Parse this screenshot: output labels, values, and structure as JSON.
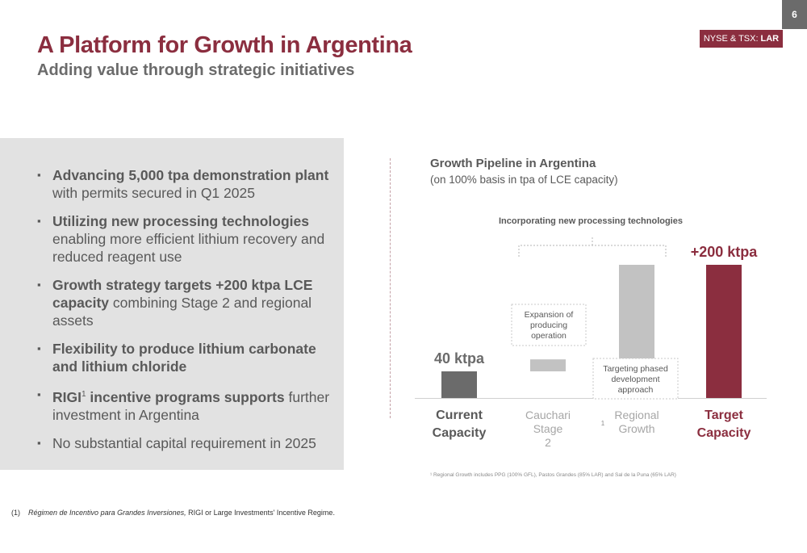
{
  "page_number": "6",
  "ticker": {
    "prefix": "NYSE & TSX:",
    "symbol": "LAR"
  },
  "header": {
    "title": "A Platform for Growth in Argentina",
    "subtitle": "Adding value through strategic initiatives"
  },
  "bullets": [
    {
      "bold": "Advancing 5,000 tpa demonstration plant",
      "text": "with permits secured in Q1 2025"
    },
    {
      "bold": "Utilizing new processing technologies",
      "text": "enabling more efficient lithium recovery and reduced reagent use"
    },
    {
      "bold": "Growth strategy targets +200 ktpa LCE capacity",
      "text": "combining Stage 2 and regional assets"
    },
    {
      "bold": "Flexibility to produce lithium carbonate and lithium chloride",
      "text": ""
    },
    {
      "bold": "RIGI",
      "sup": "1",
      "bold2": "incentive programs supports",
      "text": "further investment in Argentina"
    },
    {
      "bold": "",
      "text": "No substantial capital requirement in 2025"
    }
  ],
  "footnote": {
    "marker": "(1)",
    "italic": "Régimen de Incentivo para Grandes Inversiones,",
    "text": "RIGI or Large Investments' Incentive Regime."
  },
  "chart_data": {
    "type": "bar",
    "title": "Growth Pipeline in Argentina",
    "subtitle": "(on 100% basis in tpa of LCE capacity)",
    "categories": [
      "Current Capacity",
      "Cauchari Stage 2",
      "Regional Growth",
      "Target Capacity"
    ],
    "bars": [
      {
        "category": "Current Capacity",
        "start": 0,
        "end": 40,
        "label": "40 ktpa",
        "color": "#6b6b6b"
      },
      {
        "category": "Cauchari Stage 2",
        "start": 40,
        "end": 58,
        "label": "",
        "color": "#c2c2c2"
      },
      {
        "category": "Regional Growth",
        "start": 58,
        "end": 200,
        "label": "",
        "color": "#c2c2c2"
      },
      {
        "category": "Target Capacity",
        "start": 0,
        "end": 200,
        "label": "+200 ktpa",
        "color": "#8b2e3f"
      }
    ],
    "ylim": [
      0,
      200
    ],
    "category_styles": [
      {
        "color": "#595959",
        "bold": true
      },
      {
        "color": "#a6a6a6",
        "bold": false
      },
      {
        "color": "#a6a6a6",
        "bold": false
      },
      {
        "color": "#8b2e3f",
        "bold": true
      }
    ],
    "category_superscripts": [
      "",
      "",
      "1",
      ""
    ],
    "annotations": {
      "bracket_label": "Incorporating new processing technologies",
      "cauchari_note": "Expansion of producing operation",
      "regional_note": "Targeting phased development approach"
    },
    "note": "¹ Regional Growth includes PPG (100% GFL), Pastos Grandes (85% LAR) and Sal de la Puna (65% LAR)",
    "grid": false,
    "legend": "none"
  }
}
